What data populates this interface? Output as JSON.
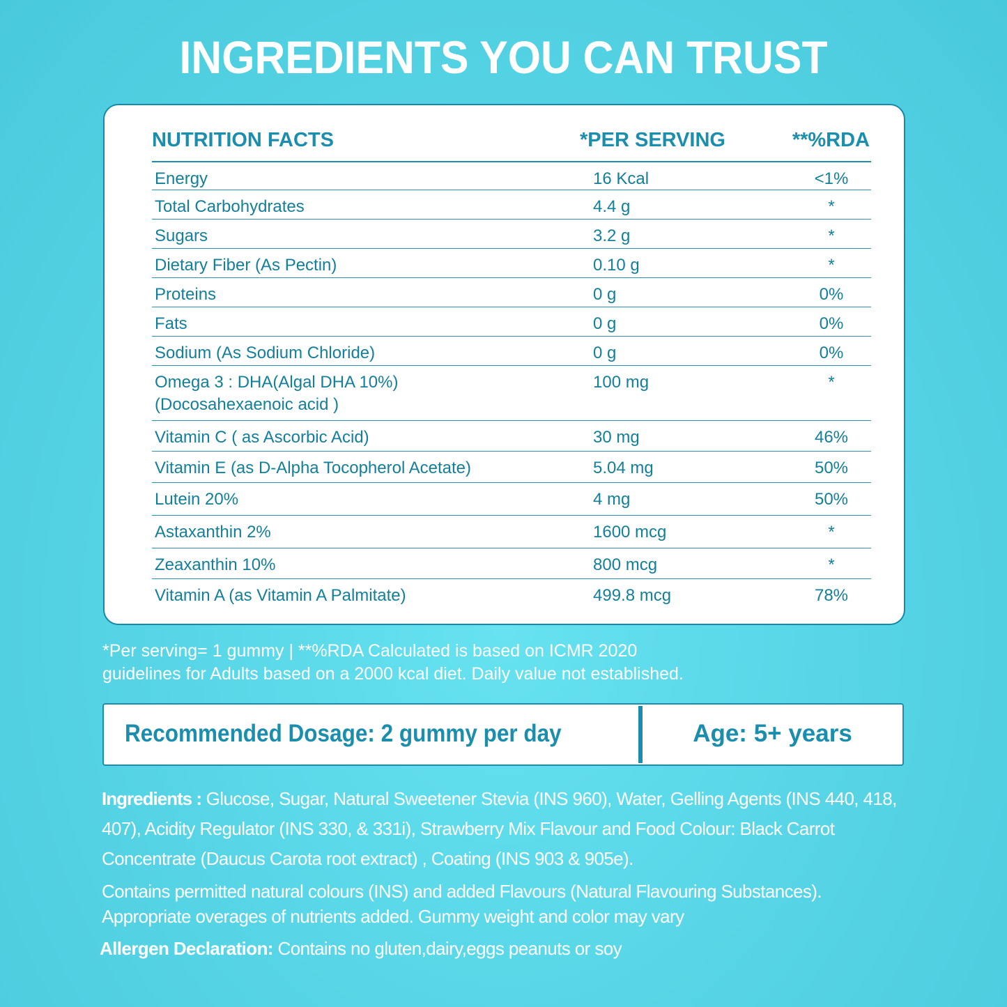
{
  "title": "INGREDIENTS YOU CAN TRUST",
  "table": {
    "headers": {
      "name": "NUTRITION FACTS",
      "serving": "*PER SERVING",
      "rda": "**%RDA"
    },
    "rows": [
      {
        "name": "Energy",
        "serving": "16 Kcal",
        "rda": "<1%"
      },
      {
        "name": "Total Carbohydrates",
        "serving": "4.4 g",
        "rda": "*"
      },
      {
        "name": "Sugars",
        "serving": "3.2 g",
        "rda": "*"
      },
      {
        "name": "Dietary Fiber (As Pectin)",
        "serving": "0.10 g",
        "rda": "*"
      },
      {
        "name": "Proteins",
        "serving": "0 g",
        "rda": "0%"
      },
      {
        "name": "Fats",
        "serving": "0 g",
        "rda": "0%"
      },
      {
        "name": "Sodium (As Sodium Chloride)",
        "serving": "0 g",
        "rda": "0%"
      },
      {
        "name": "Omega 3 : DHA(Algal DHA 10%)",
        "name2": "(Docosahexaenoic acid )",
        "serving": "100 mg",
        "rda": "*"
      },
      {
        "name": "Vitamin C ( as Ascorbic Acid)",
        "serving": "30 mg",
        "rda": "46%"
      },
      {
        "name": "Vitamin E (as D-Alpha Tocopherol Acetate)",
        "serving": "5.04 mg",
        "rda": "50%"
      },
      {
        "name": "Lutein 20%",
        "serving": "4 mg",
        "rda": "50%"
      },
      {
        "name": "Astaxanthin 2%",
        "serving": "1600 mcg",
        "rda": "*"
      },
      {
        "name": "Zeaxanthin 10%",
        "serving": "800 mcg",
        "rda": "*"
      },
      {
        "name": "Vitamin A (as Vitamin A Palmitate)",
        "serving": "499.8 mcg",
        "rda": "78%"
      }
    ]
  },
  "footnote": {
    "line1": "*Per serving= 1 gummy  |  **%RDA Calculated is based on ICMR 2020",
    "line2": "guidelines for Adults based on a 2000 kcal diet. Daily value not established."
  },
  "dosage": {
    "recommended": "Recommended Dosage: 2 gummy per day",
    "age": "Age: 5+ years"
  },
  "ingredients": {
    "label": "Ingredients :",
    "text": " Glucose, Sugar, Natural Sweetener Stevia (INS 960), Water, Gelling Agents (INS 440, 418, 407), Acidity Regulator (INS 330, & 331i), Strawberry Mix Flavour and Food Colour: Black Carrot Concentrate (Daucus Carota root extract) , Coating (INS 903 & 905e)."
  },
  "contains": "Contains permitted natural colours (INS) and added Flavours (Natural Flavouring Substances). Appropriate overages of nutrients added. Gummy weight and color may vary",
  "allergen": {
    "label": "Allergen Declaration:",
    "text": " Contains no gluten,dairy,eggs peanuts or soy"
  },
  "colors": {
    "accent": "#1a8eac",
    "background": "#58d6e7",
    "card": "#ffffff"
  }
}
